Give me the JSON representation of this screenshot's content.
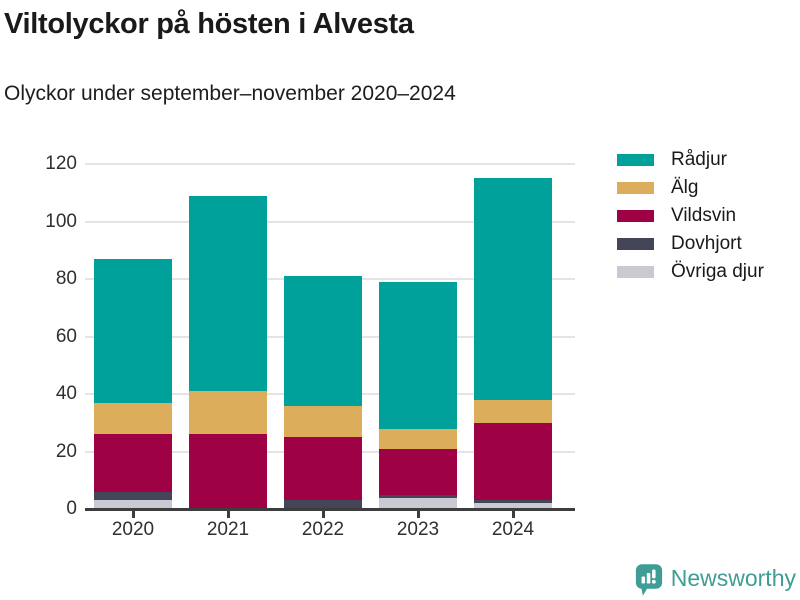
{
  "header": {
    "title": "Viltolyckor på hösten i Alvesta",
    "subtitle": "Olyckor under september–november 2020–2024"
  },
  "chart_data": {
    "type": "bar",
    "stacked": true,
    "title": "Viltolyckor på hösten i Alvesta",
    "subtitle": "Olyckor under september–november 2020–2024",
    "categories": [
      "2020",
      "2021",
      "2022",
      "2023",
      "2024"
    ],
    "series": [
      {
        "name": "Rådjur",
        "color": "#00a19a",
        "values": [
          50,
          68,
          45,
          51,
          77
        ]
      },
      {
        "name": "Älg",
        "color": "#dcae5c",
        "values": [
          11,
          15,
          11,
          7,
          8
        ]
      },
      {
        "name": "Vildsvin",
        "color": "#9e0245",
        "values": [
          20,
          26,
          22,
          16,
          27
        ]
      },
      {
        "name": "Dovhjort",
        "color": "#454559",
        "values": [
          3,
          0,
          3,
          1,
          1
        ]
      },
      {
        "name": "Övriga djur",
        "color": "#c9c9d2",
        "values": [
          3,
          0,
          0,
          4,
          2
        ]
      }
    ],
    "totals": [
      87,
      109,
      81,
      79,
      115
    ],
    "xlabel": "",
    "ylabel": "",
    "ylim": [
      0,
      120
    ],
    "yticks": [
      0,
      20,
      40,
      60,
      80,
      100,
      120
    ],
    "grid": true,
    "legend_position": "right",
    "stack_order_bottom_to_top": [
      "Övriga djur",
      "Dovhjort",
      "Vildsvin",
      "Älg",
      "Rådjur"
    ]
  },
  "colors": {
    "axis": "#3d3d3d",
    "gridline": "#e4e4e4",
    "tick_text": "#303030",
    "brand_teal": "#3e9d95"
  },
  "footer": {
    "brand": "Newsworthy"
  }
}
